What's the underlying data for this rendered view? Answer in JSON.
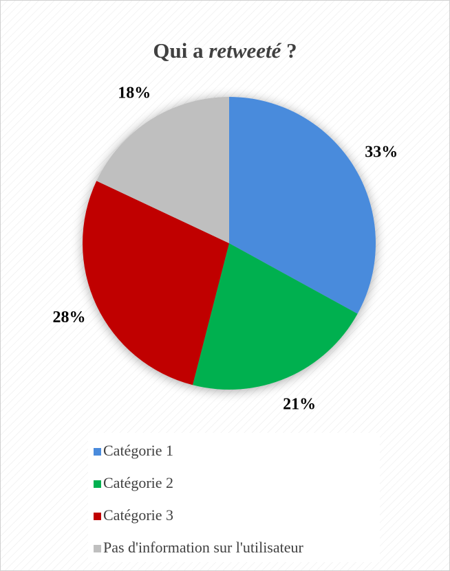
{
  "chart_data": {
    "type": "pie",
    "title": [
      "Qui a",
      "retweeté",
      "?"
    ],
    "categories": [
      "Catégorie 1",
      "Catégorie 2",
      "Catégorie 3",
      "Pas d'information sur l'utilisateur"
    ],
    "values": [
      33,
      21,
      28,
      18
    ],
    "value_labels": [
      "33%",
      "21%",
      "28%",
      "18%"
    ],
    "colors": [
      "#4a8bdc",
      "#00b050",
      "#c00000",
      "#bfbfbf"
    ]
  }
}
